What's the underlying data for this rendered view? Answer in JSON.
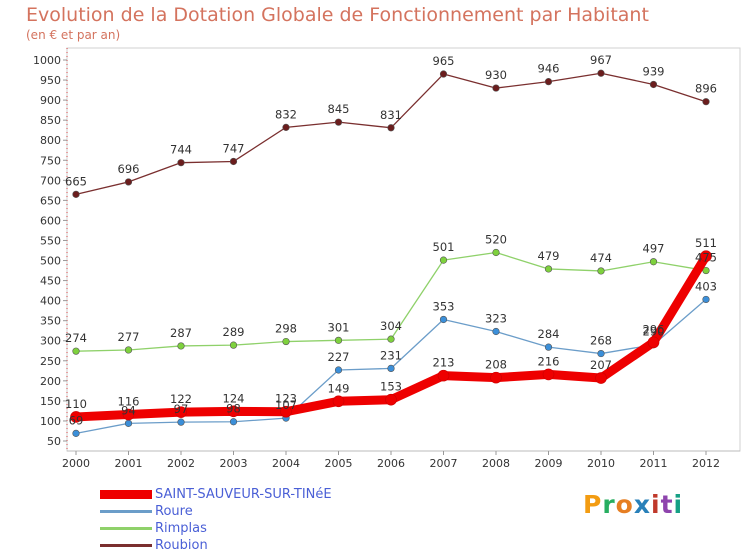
{
  "header": {
    "title": "Evolution de la Dotation Globale de Fonctionnement par Habitant",
    "subtitle": "(en € et par an)"
  },
  "logo": {
    "text": "Proxiti",
    "colors": [
      "#f39c12",
      "#27ae60",
      "#e67e22",
      "#2980b9",
      "#c0392b",
      "#8e44ad",
      "#16a085"
    ]
  },
  "chart_data": {
    "type": "line",
    "x": [
      "2000",
      "2001",
      "2002",
      "2003",
      "2004",
      "2005",
      "2006",
      "2007",
      "2008",
      "2009",
      "2010",
      "2011",
      "2012"
    ],
    "ylim": [
      50,
      1000
    ],
    "yticks": [
      50,
      100,
      150,
      200,
      250,
      300,
      350,
      400,
      450,
      500,
      550,
      600,
      650,
      700,
      750,
      800,
      850,
      900,
      950,
      1000
    ],
    "grid": false,
    "legend_position": "bottom-left",
    "series": [
      {
        "name": "SAINT-SAUVEUR-SUR-TINéE",
        "color": "#ee0000",
        "marker": "#ee0000",
        "width": 9,
        "values": [
          110,
          116,
          122,
          124,
          123,
          149,
          153,
          213,
          208,
          216,
          207,
          296,
          511
        ]
      },
      {
        "name": "Roure",
        "color": "#6b9dc9",
        "marker": "#3b8fd9",
        "width": 1.3,
        "values": [
          69,
          94,
          97,
          98,
          107,
          227,
          231,
          353,
          323,
          284,
          268,
          290,
          403
        ]
      },
      {
        "name": "Rimplas",
        "color": "#8fd16a",
        "marker": "#7ed13d",
        "width": 1.3,
        "values": [
          274,
          277,
          287,
          289,
          298,
          301,
          304,
          501,
          520,
          479,
          474,
          497,
          475
        ]
      },
      {
        "name": "Roubion",
        "color": "#7a2f2f",
        "marker": "#6b1d1d",
        "width": 1.3,
        "values": [
          665,
          696,
          744,
          747,
          832,
          845,
          831,
          965,
          930,
          946,
          967,
          939,
          896
        ]
      }
    ],
    "data_labels": [
      [
        "110",
        "116",
        "122",
        "124",
        "123",
        "149",
        "153",
        "213",
        "208",
        "216",
        "207",
        "296",
        "511"
      ],
      [
        "69",
        "94",
        "97",
        "98",
        "107",
        "227",
        "231",
        "353",
        "323",
        "284",
        "268",
        "290",
        "403"
      ],
      [
        "274",
        "277",
        "287",
        "289",
        "298",
        "301",
        "304",
        "501",
        "520",
        "479",
        "474",
        "497",
        "475"
      ],
      [
        "665",
        "696",
        "744",
        "747",
        "832",
        "845",
        "831",
        "965",
        "930",
        "946",
        "967",
        "939",
        "896"
      ]
    ]
  }
}
